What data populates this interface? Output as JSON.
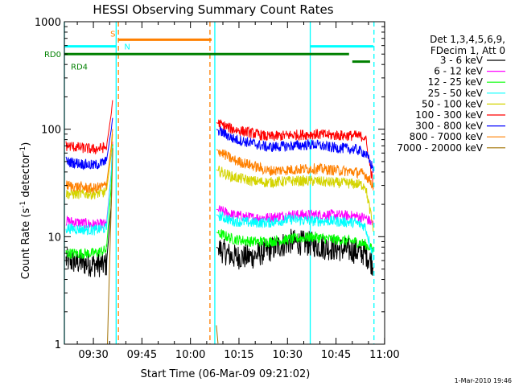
{
  "chart_data": {
    "type": "line",
    "title": "HESSI Observing Summary Count Rates",
    "xlabel": "Start Time (06-Mar-09 09:21:02)",
    "ylabel_main": "Count Rate (s",
    "ylabel_sup1": "-1",
    "ylabel_mid": " detector",
    "ylabel_sup2": "-1",
    "ylabel_end": ")",
    "footer": "1-Mar-2010 19:46",
    "y_scale": "log",
    "ylim": [
      1,
      1000
    ],
    "xlim_minutes": [
      0,
      99
    ],
    "x_ticks": [
      {
        "label": "09:30",
        "min": 8.97
      },
      {
        "label": "09:45",
        "min": 23.97
      },
      {
        "label": "10:00",
        "min": 38.97
      },
      {
        "label": "10:15",
        "min": 53.97
      },
      {
        "label": "10:30",
        "min": 68.97
      },
      {
        "label": "10:45",
        "min": 83.97
      },
      {
        "label": "11:00",
        "min": 98.97
      }
    ],
    "y_ticks": [
      {
        "label": "1",
        "v": 1
      },
      {
        "label": "10",
        "v": 10
      },
      {
        "label": "100",
        "v": 100
      },
      {
        "label": "1000",
        "v": 1000
      }
    ],
    "legend_header": [
      "Det 1,3,4,5,6,9,",
      "FDecim 1, Att 0"
    ],
    "legend_position": "right",
    "series": [
      {
        "name": "3 - 6 keV",
        "color": "#000000",
        "points": [
          [
            0.5,
            6
          ],
          [
            9,
            5.5
          ],
          [
            13,
            5.5
          ],
          [
            14.5,
            20
          ],
          [
            15,
            100
          ]
        ],
        "points2": [
          [
            47,
            8
          ],
          [
            52,
            6.5
          ],
          [
            58,
            6.5
          ],
          [
            63,
            7.5
          ],
          [
            70,
            9
          ],
          [
            77,
            8.5
          ],
          [
            80,
            8
          ],
          [
            88,
            7.5
          ],
          [
            93,
            7
          ],
          [
            95.5,
            5.5
          ]
        ]
      },
      {
        "name": "6 - 12 keV",
        "color": "#ff00ff",
        "points": [
          [
            0.5,
            14
          ],
          [
            9,
            13
          ],
          [
            13,
            13
          ],
          [
            14.5,
            40
          ],
          [
            15,
            90
          ]
        ],
        "points2": [
          [
            47,
            18
          ],
          [
            52,
            16
          ],
          [
            58,
            15
          ],
          [
            63,
            15
          ],
          [
            70,
            16
          ],
          [
            77,
            16
          ],
          [
            82,
            16
          ],
          [
            90,
            15.5
          ],
          [
            93,
            15
          ],
          [
            95.5,
            13
          ]
        ]
      },
      {
        "name": "12 - 25 keV",
        "color": "#00ff00",
        "points": [
          [
            0.5,
            7
          ],
          [
            9,
            7
          ],
          [
            13,
            7.5
          ],
          [
            14.5,
            30
          ],
          [
            15,
            90
          ]
        ],
        "points2": [
          [
            47,
            11
          ],
          [
            52,
            9.5
          ],
          [
            58,
            9
          ],
          [
            63,
            9
          ],
          [
            70,
            9.5
          ],
          [
            77,
            10
          ],
          [
            82,
            9.5
          ],
          [
            90,
            9
          ],
          [
            93,
            8.5
          ],
          [
            95.5,
            7.5
          ]
        ]
      },
      {
        "name": "25 - 50 keV",
        "color": "#00ffff",
        "points": [
          [
            0.5,
            12
          ],
          [
            9,
            11.5
          ],
          [
            13,
            12
          ],
          [
            14.5,
            40
          ],
          [
            15,
            80
          ]
        ],
        "points2": [
          [
            47,
            16
          ],
          [
            52,
            14
          ],
          [
            58,
            13.5
          ],
          [
            63,
            13.5
          ],
          [
            70,
            14.5
          ],
          [
            77,
            14
          ],
          [
            82,
            14
          ],
          [
            90,
            13.5
          ],
          [
            93,
            12.5
          ],
          [
            95.5,
            6.5
          ]
        ]
      },
      {
        "name": "50 - 100 keV",
        "color": "#d4d400",
        "points": [
          [
            0.5,
            25
          ],
          [
            9,
            25
          ],
          [
            13,
            26
          ],
          [
            14.5,
            60
          ],
          [
            15,
            100
          ]
        ],
        "points2": [
          [
            47,
            42
          ],
          [
            52,
            36
          ],
          [
            58,
            33
          ],
          [
            63,
            32
          ],
          [
            70,
            33
          ],
          [
            77,
            33
          ],
          [
            82,
            32
          ],
          [
            90,
            31
          ],
          [
            93,
            30
          ],
          [
            95.5,
            12
          ]
        ]
      },
      {
        "name": "100 - 300 keV",
        "color": "#ff0000",
        "points": [
          [
            0.5,
            70
          ],
          [
            9,
            65
          ],
          [
            13,
            68
          ],
          [
            14.5,
            140
          ],
          [
            15,
            200
          ]
        ],
        "points2": [
          [
            47,
            115
          ],
          [
            52,
            100
          ],
          [
            58,
            92
          ],
          [
            63,
            85
          ],
          [
            70,
            88
          ],
          [
            77,
            90
          ],
          [
            82,
            88
          ],
          [
            90,
            87
          ],
          [
            93,
            85
          ],
          [
            95.5,
            30
          ]
        ]
      },
      {
        "name": "300 - 800 keV",
        "color": "#0000ff",
        "points": [
          [
            0.5,
            50
          ],
          [
            9,
            46
          ],
          [
            13,
            50
          ],
          [
            14.5,
            100
          ],
          [
            15,
            135
          ]
        ],
        "points2": [
          [
            47,
            100
          ],
          [
            52,
            82
          ],
          [
            58,
            74
          ],
          [
            63,
            68
          ],
          [
            70,
            70
          ],
          [
            77,
            72
          ],
          [
            82,
            68
          ],
          [
            90,
            65
          ],
          [
            93,
            60
          ],
          [
            95.5,
            43
          ]
        ]
      },
      {
        "name": "800 - 7000 keV",
        "color": "#ff8000",
        "points": [
          [
            0.5,
            30
          ],
          [
            9,
            28
          ],
          [
            13,
            30
          ],
          [
            14.5,
            70
          ],
          [
            15,
            110
          ]
        ],
        "points2": [
          [
            47,
            65
          ],
          [
            52,
            52
          ],
          [
            58,
            46
          ],
          [
            63,
            41
          ],
          [
            70,
            42
          ],
          [
            77,
            43
          ],
          [
            82,
            42
          ],
          [
            90,
            40
          ],
          [
            93,
            38
          ],
          [
            95.5,
            30
          ]
        ]
      },
      {
        "name": "7000 - 20000 keV",
        "color": "#a07000",
        "points": [
          [
            13.3,
            1
          ],
          [
            14.5,
            20
          ],
          [
            15,
            70
          ]
        ],
        "points2": [
          [
            47,
            1.5
          ],
          [
            47.5,
            1
          ]
        ]
      }
    ],
    "flag_lines": [
      {
        "label": "S",
        "color": "#ff8000",
        "v": 680,
        "from": 16.5,
        "to": 45.5,
        "label_at": 14.2
      },
      {
        "label": "N",
        "color": "#00ffff",
        "v": 590,
        "from": 0.0,
        "to": 16.0,
        "label_at": 18.5
      },
      {
        "label": "",
        "color": "#00ffff",
        "v": 590,
        "from": 76.0,
        "to": 95.5,
        "label_at": -1
      },
      {
        "label": "RD0",
        "color": "#008000",
        "v": 500,
        "from": 0.0,
        "to": 88.0,
        "label_at": -1
      },
      {
        "label": "RD4",
        "color": "#008000",
        "v": 425,
        "from": 89.0,
        "to": 94.5,
        "label_at": 2.0
      }
    ],
    "vlines": [
      {
        "min": 0.0,
        "color": "#00ffff",
        "dashed": false
      },
      {
        "min": 16.0,
        "color": "#00ffff",
        "dashed": false
      },
      {
        "min": 16.7,
        "color": "#ff8000",
        "dashed": true
      },
      {
        "min": 45.0,
        "color": "#ff8000",
        "dashed": true
      },
      {
        "min": 46.5,
        "color": "#00ffff",
        "dashed": false
      },
      {
        "min": 76.0,
        "color": "#00ffff",
        "dashed": false
      },
      {
        "min": 95.7,
        "color": "#00ffff",
        "dashed": true
      }
    ]
  }
}
